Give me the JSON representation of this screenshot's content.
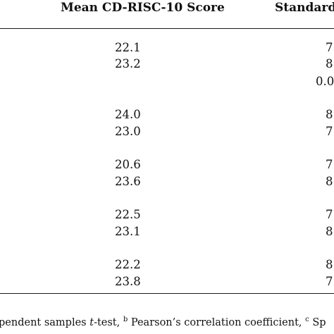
{
  "table": {
    "headers": {
      "mean": "Mean CD-RISC-10 Score",
      "sd": "Standard"
    },
    "rows": [
      {
        "mean": "22.1",
        "sd": "7"
      },
      {
        "mean": "23.2",
        "sd": "8"
      },
      {
        "p": "0.0"
      },
      {
        "mean": "24.0",
        "sd": "8"
      },
      {
        "mean": "23.0",
        "sd": "7"
      },
      {
        "mean": "20.6",
        "sd": "7"
      },
      {
        "mean": "23.6",
        "sd": "8"
      },
      {
        "mean": "22.5",
        "sd": "7"
      },
      {
        "mean": "23.1",
        "sd": "8"
      },
      {
        "mean": "22.2",
        "sd": "8"
      },
      {
        "mean": "23.8",
        "sd": "7"
      }
    ]
  },
  "footnote": {
    "part1": "pendent samples ",
    "t": "t",
    "part2": "-test, ",
    "sup_b": "b",
    "part3": " Pearson’s correlation coefficient, ",
    "sup_c": "c",
    "part4": " Sp"
  }
}
